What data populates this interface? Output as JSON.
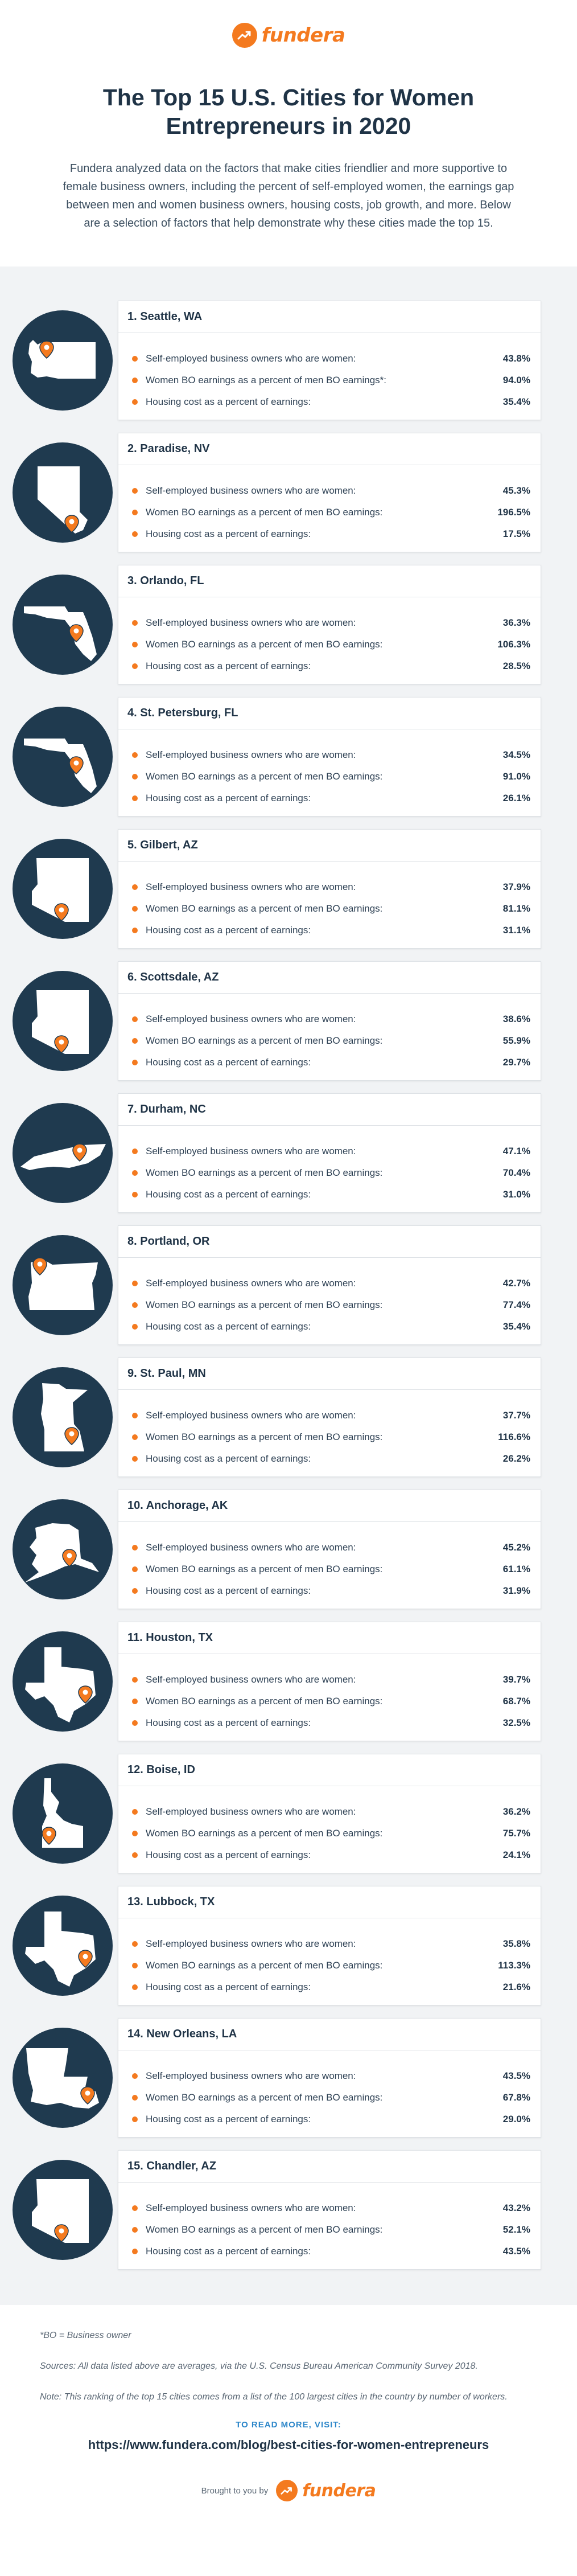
{
  "brand": {
    "logo_text": "fundera",
    "logo_icon": "trend-arrow-icon",
    "accent_color": "#f47a1f",
    "dark_color": "#1f3a4f"
  },
  "header": {
    "title": "The Top 15 U.S. Cities for Women Entrepreneurs in 2020",
    "intro": "Fundera analyzed data on the factors that make cities friendlier and more supportive to female business owners, including the percent of self-employed women, the earnings gap between men and women business owners, housing costs, job growth, and more. Below are a selection of factors that help demonstrate why these cities made the top 15."
  },
  "labels": {
    "self_employed": "Self-employed business owners who are women:",
    "earnings": "Women BO earnings as a percent of men BO earnings:",
    "earnings_first": "Women BO earnings as a percent of men BO earnings*:",
    "housing": "Housing cost as a percent of earnings:"
  },
  "cities": [
    {
      "name": "1. Seattle, WA",
      "state": "WA",
      "self_employed": "43.8%",
      "earnings": "94.0%",
      "housing": "35.4%"
    },
    {
      "name": "2. Paradise, NV",
      "state": "NV",
      "self_employed": "45.3%",
      "earnings": "196.5%",
      "housing": "17.5%"
    },
    {
      "name": "3. Orlando, FL",
      "state": "FL",
      "self_employed": "36.3%",
      "earnings": "106.3%",
      "housing": "28.5%"
    },
    {
      "name": "4. St. Petersburg, FL",
      "state": "FL",
      "self_employed": "34.5%",
      "earnings": "91.0%",
      "housing": "26.1%"
    },
    {
      "name": "5. Gilbert, AZ",
      "state": "AZ",
      "self_employed": "37.9%",
      "earnings": "81.1%",
      "housing": "31.1%"
    },
    {
      "name": "6. Scottsdale, AZ",
      "state": "AZ",
      "self_employed": "38.6%",
      "earnings": "55.9%",
      "housing": "29.7%"
    },
    {
      "name": "7. Durham, NC",
      "state": "NC",
      "self_employed": "47.1%",
      "earnings": "70.4%",
      "housing": "31.0%"
    },
    {
      "name": "8. Portland, OR",
      "state": "OR",
      "self_employed": "42.7%",
      "earnings": "77.4%",
      "housing": "35.4%"
    },
    {
      "name": "9. St. Paul, MN",
      "state": "MN",
      "self_employed": "37.7%",
      "earnings": "116.6%",
      "housing": "26.2%"
    },
    {
      "name": "10. Anchorage, AK",
      "state": "AK",
      "self_employed": "45.2%",
      "earnings": "61.1%",
      "housing": "31.9%"
    },
    {
      "name": "11. Houston, TX",
      "state": "TX",
      "self_employed": "39.7%",
      "earnings": "68.7%",
      "housing": "32.5%"
    },
    {
      "name": "12. Boise, ID",
      "state": "ID",
      "self_employed": "36.2%",
      "earnings": "75.7%",
      "housing": "24.1%"
    },
    {
      "name": "13. Lubbock, TX",
      "state": "TX",
      "self_employed": "35.8%",
      "earnings": "113.3%",
      "housing": "21.6%"
    },
    {
      "name": "14. New Orleans, LA",
      "state": "LA",
      "self_employed": "43.5%",
      "earnings": "67.8%",
      "housing": "29.0%"
    },
    {
      "name": "15. Chandler, AZ",
      "state": "AZ",
      "self_employed": "43.2%",
      "earnings": "52.1%",
      "housing": "43.5%"
    }
  ],
  "footer": {
    "bo_note": "*BO = Business owner",
    "sources": "Sources: All data listed above are averages, via the U.S. Census Bureau American Community Survey 2018.",
    "note": "Note: This ranking of the top 15 cities comes from a list of the 100 largest cities in the country by number of workers.",
    "read_more_label": "TO READ MORE, VISIT:",
    "read_more_url": "https://www.fundera.com/blog/best-cities-for-women-entrepreneurs",
    "brought_by": "Brought to you by"
  }
}
